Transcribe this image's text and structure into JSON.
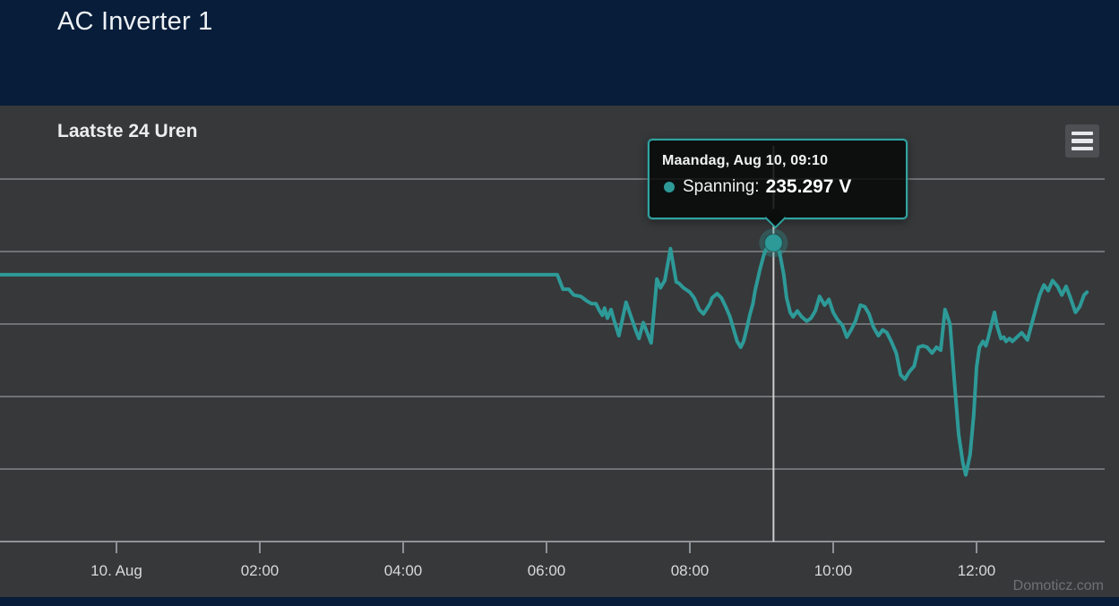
{
  "header": {
    "title": "AC Inverter 1"
  },
  "chart": {
    "title": "Laatste 24 Uren",
    "watermark": "Domoticz.com",
    "export_menu_icon": "hamburger-menu-icon",
    "tooltip": {
      "date_line": "Maandag, Aug 10, 09:10",
      "series_label": "Spanning",
      "separator": ":",
      "value_text": "235.297 V"
    },
    "colors": {
      "header_bg": "#071d39",
      "chart_bg": "#37383a",
      "series": "#2d9a98",
      "gridline": "#6f7275",
      "axis_line": "#8e9296",
      "tick_label": "#d8d9db",
      "crosshair": "#dcdcdc",
      "tooltip_border": "#2fa3a1"
    }
  },
  "chart_data": {
    "type": "line",
    "title": "Laatste 24 Uren",
    "xlabel": "",
    "ylabel": "",
    "x_unit": "hours since 00:00 on Aug 10",
    "ylim": [
      225,
      240
    ],
    "y_gridline_step": 2.5,
    "grid": true,
    "legend": "none",
    "x_ticks": [
      {
        "t": 0,
        "label": "10. Aug"
      },
      {
        "t": 2,
        "label": "02:00"
      },
      {
        "t": 4,
        "label": "04:00"
      },
      {
        "t": 6,
        "label": "06:00"
      },
      {
        "t": 8,
        "label": "08:00"
      },
      {
        "t": 10,
        "label": "10:00"
      },
      {
        "t": 12,
        "label": "12:00"
      }
    ],
    "highlight": {
      "t": 9.167,
      "v": 235.297,
      "label": "Maandag, Aug 10, 09:10"
    },
    "series": [
      {
        "name": "Spanning",
        "unit": "V",
        "color": "#2d9a98",
        "points": [
          [
            -1.63,
            234.2
          ],
          [
            6.15,
            234.2
          ],
          [
            6.23,
            233.7
          ],
          [
            6.31,
            233.7
          ],
          [
            6.38,
            233.5
          ],
          [
            6.48,
            233.45
          ],
          [
            6.56,
            233.3
          ],
          [
            6.63,
            233.2
          ],
          [
            6.69,
            233.2
          ],
          [
            6.73,
            233.0
          ],
          [
            6.78,
            232.8
          ],
          [
            6.81,
            233.05
          ],
          [
            6.85,
            232.7
          ],
          [
            6.9,
            233.0
          ],
          [
            6.94,
            232.65
          ],
          [
            7.01,
            232.1
          ],
          [
            7.11,
            233.25
          ],
          [
            7.25,
            232.25
          ],
          [
            7.29,
            232.0
          ],
          [
            7.35,
            232.55
          ],
          [
            7.46,
            231.85
          ],
          [
            7.54,
            234.05
          ],
          [
            7.59,
            233.75
          ],
          [
            7.65,
            234.0
          ],
          [
            7.73,
            235.1
          ],
          [
            7.81,
            233.95
          ],
          [
            7.85,
            233.9
          ],
          [
            7.91,
            233.75
          ],
          [
            8.0,
            233.6
          ],
          [
            8.06,
            233.4
          ],
          [
            8.13,
            233.0
          ],
          [
            8.19,
            232.85
          ],
          [
            8.23,
            233.0
          ],
          [
            8.28,
            233.2
          ],
          [
            8.31,
            233.4
          ],
          [
            8.38,
            233.55
          ],
          [
            8.44,
            233.4
          ],
          [
            8.5,
            233.1
          ],
          [
            8.56,
            232.75
          ],
          [
            8.63,
            232.15
          ],
          [
            8.66,
            231.9
          ],
          [
            8.71,
            231.7
          ],
          [
            8.75,
            231.9
          ],
          [
            8.79,
            232.3
          ],
          [
            8.84,
            232.85
          ],
          [
            8.88,
            233.2
          ],
          [
            8.91,
            233.65
          ],
          [
            8.98,
            234.4
          ],
          [
            9.04,
            234.95
          ],
          [
            9.1,
            235.25
          ],
          [
            9.167,
            235.297
          ],
          [
            9.25,
            235.0
          ],
          [
            9.31,
            234.2
          ],
          [
            9.35,
            233.4
          ],
          [
            9.4,
            232.9
          ],
          [
            9.44,
            232.75
          ],
          [
            9.5,
            232.95
          ],
          [
            9.56,
            232.75
          ],
          [
            9.63,
            232.6
          ],
          [
            9.69,
            232.7
          ],
          [
            9.75,
            232.95
          ],
          [
            9.81,
            233.45
          ],
          [
            9.88,
            233.15
          ],
          [
            9.94,
            233.35
          ],
          [
            10.0,
            232.9
          ],
          [
            10.06,
            232.65
          ],
          [
            10.13,
            232.45
          ],
          [
            10.19,
            232.05
          ],
          [
            10.25,
            232.3
          ],
          [
            10.31,
            232.6
          ],
          [
            10.38,
            233.15
          ],
          [
            10.44,
            233.1
          ],
          [
            10.5,
            232.85
          ],
          [
            10.56,
            232.4
          ],
          [
            10.63,
            232.1
          ],
          [
            10.69,
            232.3
          ],
          [
            10.75,
            232.2
          ],
          [
            10.81,
            231.9
          ],
          [
            10.88,
            231.5
          ],
          [
            10.94,
            230.75
          ],
          [
            11.0,
            230.6
          ],
          [
            11.06,
            230.85
          ],
          [
            11.13,
            231.05
          ],
          [
            11.19,
            231.7
          ],
          [
            11.25,
            231.75
          ],
          [
            11.31,
            231.7
          ],
          [
            11.38,
            231.5
          ],
          [
            11.44,
            231.7
          ],
          [
            11.5,
            231.6
          ],
          [
            11.56,
            233.0
          ],
          [
            11.63,
            232.5
          ],
          [
            11.69,
            230.55
          ],
          [
            11.75,
            228.7
          ],
          [
            11.81,
            227.7
          ],
          [
            11.85,
            227.3
          ],
          [
            11.91,
            228.0
          ],
          [
            11.96,
            229.35
          ],
          [
            12.0,
            231.0
          ],
          [
            12.04,
            231.7
          ],
          [
            12.09,
            231.9
          ],
          [
            12.13,
            231.75
          ],
          [
            12.16,
            232.0
          ],
          [
            12.21,
            232.5
          ],
          [
            12.25,
            232.9
          ],
          [
            12.29,
            232.4
          ],
          [
            12.34,
            232.0
          ],
          [
            12.38,
            232.05
          ],
          [
            12.41,
            231.9
          ],
          [
            12.46,
            232.0
          ],
          [
            12.5,
            231.9
          ],
          [
            12.63,
            232.2
          ],
          [
            12.71,
            231.95
          ],
          [
            12.78,
            232.6
          ],
          [
            12.88,
            233.5
          ],
          [
            12.94,
            233.85
          ],
          [
            13.0,
            233.65
          ],
          [
            13.06,
            234.0
          ],
          [
            13.13,
            233.8
          ],
          [
            13.19,
            233.5
          ],
          [
            13.25,
            233.8
          ],
          [
            13.31,
            233.4
          ],
          [
            13.38,
            232.9
          ],
          [
            13.44,
            233.1
          ],
          [
            13.5,
            233.5
          ],
          [
            13.54,
            233.6
          ]
        ]
      }
    ]
  }
}
